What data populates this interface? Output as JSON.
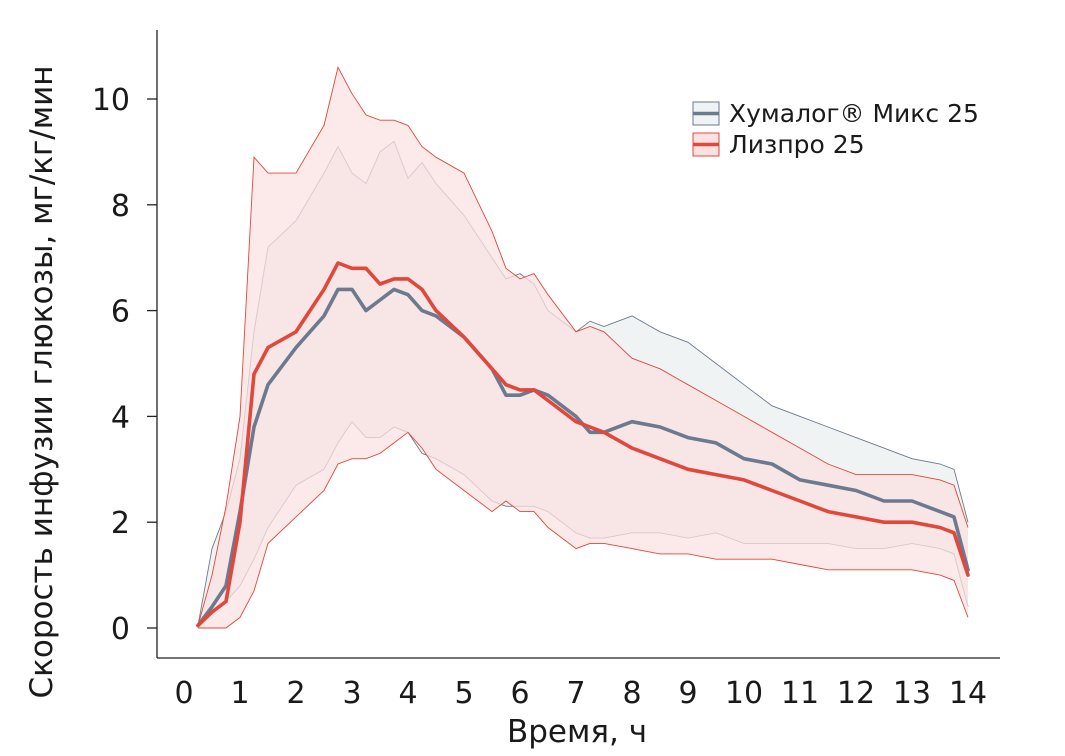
{
  "chart_data": {
    "type": "line",
    "title": "",
    "xlabel": "Время, ч",
    "ylabel": "Скорость инфузии глюкозы, мг/кг/мин",
    "xlim": [
      0,
      14
    ],
    "ylim": [
      0,
      11
    ],
    "xticks": [
      "0",
      "1",
      "2",
      "3",
      "4",
      "5",
      "6",
      "7",
      "8",
      "9",
      "10",
      "11",
      "12",
      "13",
      "14"
    ],
    "yticks": [
      "0",
      "2",
      "4",
      "6",
      "8",
      "10"
    ],
    "grid": false,
    "legend_position": "top-right",
    "series": [
      {
        "name": "Хумалог® Микс 25",
        "color": "#6b7a8f",
        "band_fill": "#f0f3f3",
        "x": [
          0.25,
          0.5,
          0.75,
          1.0,
          1.25,
          1.5,
          2.0,
          2.5,
          2.75,
          3.0,
          3.25,
          3.5,
          3.75,
          4.0,
          4.25,
          4.5,
          5.0,
          5.5,
          5.75,
          6.0,
          6.25,
          6.5,
          7.0,
          7.25,
          7.5,
          8.0,
          8.5,
          9.0,
          9.5,
          10.0,
          10.5,
          11.0,
          11.5,
          12.0,
          12.5,
          13.0,
          13.5,
          13.75,
          14.0
        ],
        "mean": [
          0.05,
          0.4,
          0.8,
          2.2,
          3.8,
          4.6,
          5.3,
          5.9,
          6.4,
          6.4,
          6.0,
          6.2,
          6.4,
          6.3,
          6.0,
          5.9,
          5.5,
          4.9,
          4.4,
          4.4,
          4.5,
          4.4,
          4.0,
          3.7,
          3.7,
          3.9,
          3.8,
          3.6,
          3.5,
          3.2,
          3.1,
          2.8,
          2.7,
          2.6,
          2.4,
          2.4,
          2.2,
          2.1,
          1.1
        ],
        "upper": [
          0.05,
          1.5,
          2.2,
          3.2,
          5.6,
          7.2,
          7.7,
          8.6,
          9.1,
          8.6,
          8.4,
          9.0,
          9.2,
          8.5,
          8.8,
          8.4,
          7.8,
          7.0,
          6.6,
          6.7,
          6.5,
          6.0,
          5.6,
          5.8,
          5.7,
          5.9,
          5.6,
          5.4,
          5.0,
          4.6,
          4.2,
          4.0,
          3.8,
          3.6,
          3.4,
          3.2,
          3.1,
          3.0,
          2.0
        ],
        "lower": [
          0.0,
          0.3,
          0.5,
          0.8,
          1.3,
          1.9,
          2.7,
          3.0,
          3.5,
          3.9,
          3.6,
          3.6,
          3.8,
          3.7,
          3.3,
          3.2,
          2.9,
          2.4,
          2.3,
          2.3,
          2.3,
          2.2,
          1.8,
          1.7,
          1.7,
          1.8,
          1.8,
          1.7,
          1.8,
          1.6,
          1.6,
          1.6,
          1.6,
          1.5,
          1.5,
          1.6,
          1.5,
          1.4,
          0.4
        ]
      },
      {
        "name": "Лизпро 25",
        "color": "#e0483c",
        "band_fill": "#fbe2e2",
        "x": [
          0.25,
          0.5,
          0.75,
          1.0,
          1.25,
          1.5,
          2.0,
          2.5,
          2.75,
          3.0,
          3.25,
          3.5,
          3.75,
          4.0,
          4.25,
          4.5,
          5.0,
          5.5,
          5.75,
          6.0,
          6.25,
          6.5,
          7.0,
          7.25,
          7.5,
          8.0,
          8.5,
          9.0,
          9.5,
          10.0,
          10.5,
          11.0,
          11.5,
          12.0,
          12.5,
          13.0,
          13.5,
          13.75,
          14.0
        ],
        "mean": [
          0.05,
          0.3,
          0.5,
          2.0,
          4.8,
          5.3,
          5.6,
          6.4,
          6.9,
          6.8,
          6.8,
          6.5,
          6.6,
          6.6,
          6.4,
          6.0,
          5.5,
          4.9,
          4.6,
          4.5,
          4.5,
          4.3,
          3.9,
          3.8,
          3.7,
          3.4,
          3.2,
          3.0,
          2.9,
          2.8,
          2.6,
          2.4,
          2.2,
          2.1,
          2.0,
          2.0,
          1.9,
          1.8,
          1.0
        ],
        "upper": [
          0.05,
          1.0,
          2.3,
          4.0,
          8.9,
          8.6,
          8.6,
          9.5,
          10.6,
          10.1,
          9.7,
          9.6,
          9.6,
          9.5,
          9.1,
          8.9,
          8.6,
          7.5,
          6.8,
          6.6,
          6.7,
          6.3,
          5.6,
          5.7,
          5.6,
          5.1,
          4.9,
          4.6,
          4.3,
          4.0,
          3.7,
          3.4,
          3.1,
          2.9,
          2.9,
          2.9,
          2.8,
          2.7,
          1.9
        ],
        "lower": [
          0.0,
          0.0,
          0.0,
          0.2,
          0.7,
          1.6,
          2.1,
          2.6,
          3.1,
          3.2,
          3.2,
          3.3,
          3.5,
          3.7,
          3.4,
          3.0,
          2.6,
          2.2,
          2.4,
          2.2,
          2.2,
          1.9,
          1.5,
          1.6,
          1.6,
          1.5,
          1.4,
          1.4,
          1.3,
          1.3,
          1.3,
          1.2,
          1.1,
          1.1,
          1.1,
          1.1,
          1.0,
          0.9,
          0.2
        ]
      }
    ]
  }
}
